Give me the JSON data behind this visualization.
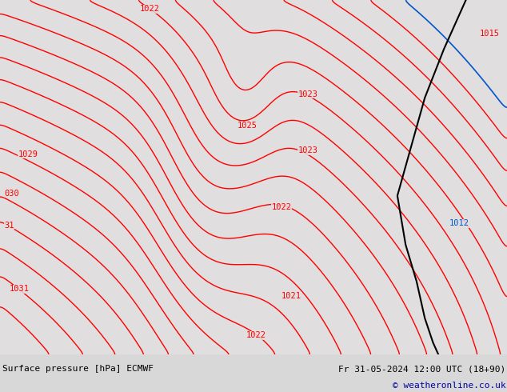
{
  "title_left": "Surface pressure [hPa] ECMWF",
  "title_right": "Fr 31-05-2024 12:00 UTC (18+90)",
  "copyright": "© weatheronline.co.uk",
  "bg_color": "#e0dede",
  "land_color": "#c8e8a0",
  "contour_color_red": "#ff0000",
  "contour_color_blue": "#0055cc",
  "contour_color_black": "#000000",
  "figsize": [
    6.34,
    4.9
  ],
  "dpi": 100,
  "footer_bg": "#d8d8d8",
  "footer_text_color": "#000000",
  "copyright_color": "#0000aa",
  "lon_min": -13.0,
  "lon_max": 5.5,
  "lat_min": 48.0,
  "lat_max": 62.5,
  "pressure_labels": [
    {
      "value": "1022",
      "fx": 0.295,
      "fy": 0.975,
      "color": "red"
    },
    {
      "value": "1015",
      "fx": 0.965,
      "fy": 0.905,
      "color": "red"
    },
    {
      "value": "1029",
      "fx": 0.055,
      "fy": 0.565,
      "color": "red"
    },
    {
      "value": "1025",
      "fx": 0.488,
      "fy": 0.645,
      "color": "red"
    },
    {
      "value": "1023",
      "fx": 0.608,
      "fy": 0.735,
      "color": "red"
    },
    {
      "value": "1023",
      "fx": 0.608,
      "fy": 0.575,
      "color": "red"
    },
    {
      "value": "1022",
      "fx": 0.555,
      "fy": 0.415,
      "color": "red"
    },
    {
      "value": "1021",
      "fx": 0.575,
      "fy": 0.165,
      "color": "red"
    },
    {
      "value": "1022",
      "fx": 0.505,
      "fy": 0.055,
      "color": "red"
    },
    {
      "value": "1031",
      "fx": 0.038,
      "fy": 0.185,
      "color": "red"
    },
    {
      "value": "1012",
      "fx": 0.905,
      "fy": 0.37,
      "color": "blue"
    }
  ],
  "partial_labels": [
    {
      "value": "030",
      "fx": 0.008,
      "fy": 0.455,
      "color": "red"
    },
    {
      "value": "31",
      "fx": 0.008,
      "fy": 0.365,
      "color": "red"
    }
  ]
}
